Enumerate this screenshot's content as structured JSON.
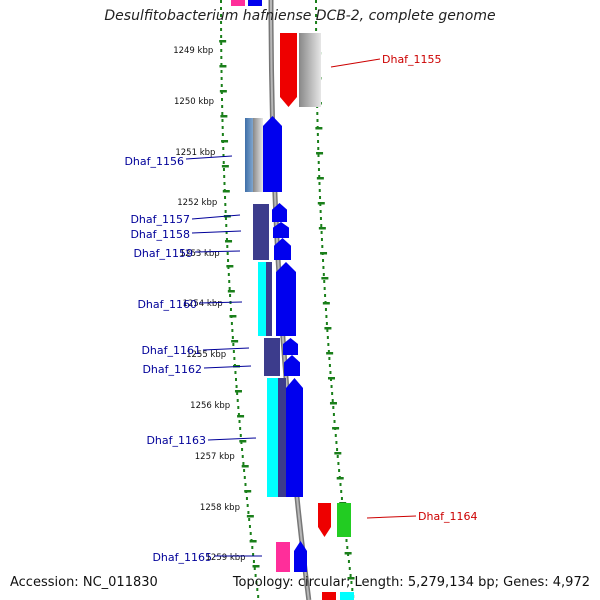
{
  "title": "Desulfitobacterium hafniense DCB-2, complete genome",
  "footer": {
    "accession_label": "Accession:",
    "accession": "NC_011830",
    "topology_label": "Topology:",
    "topology": "circular",
    "length_label": "Length:",
    "length": "5,279,134 bp",
    "genes_label": "Genes:",
    "genes": "4,972"
  },
  "tick_labels": [
    "1249 kbp",
    "1250 kbp",
    "1251 kbp",
    "1252 kbp",
    "1253 kbp",
    "1254 kbp",
    "1255 kbp",
    "1256 kbp",
    "1257 kbp",
    "1258 kbp",
    "1259 kbp"
  ],
  "gene_labels": [
    {
      "text": "Dhaf_1155",
      "side": "right",
      "color": "#cc0000"
    },
    {
      "text": "Dhaf_1156",
      "side": "left",
      "color": "#000099"
    },
    {
      "text": "Dhaf_1157",
      "side": "left",
      "color": "#000099"
    },
    {
      "text": "Dhaf_1158",
      "side": "left",
      "color": "#000099"
    },
    {
      "text": "Dhaf_1159",
      "side": "left",
      "color": "#000099"
    },
    {
      "text": "Dhaf_1160",
      "side": "left",
      "color": "#000099"
    },
    {
      "text": "Dhaf_1161",
      "side": "left",
      "color": "#000099"
    },
    {
      "text": "Dhaf_1162",
      "side": "left",
      "color": "#000099"
    },
    {
      "text": "Dhaf_1163",
      "side": "left",
      "color": "#000099"
    },
    {
      "text": "Dhaf_1164",
      "side": "right",
      "color": "#cc0000"
    },
    {
      "text": "Dhaf_1165",
      "side": "left",
      "color": "#000099"
    }
  ],
  "colors": {
    "blue": "#0000ee",
    "navy": "#3c3c8c",
    "cyan": "#00ffff",
    "red": "#ee0000",
    "grey": "#b4b4b4",
    "steel": "#5a82b4",
    "green": "#22cc22",
    "magenta": "#ff2e9a",
    "backbone": "#888888",
    "ruler": "#1a7f1a"
  }
}
